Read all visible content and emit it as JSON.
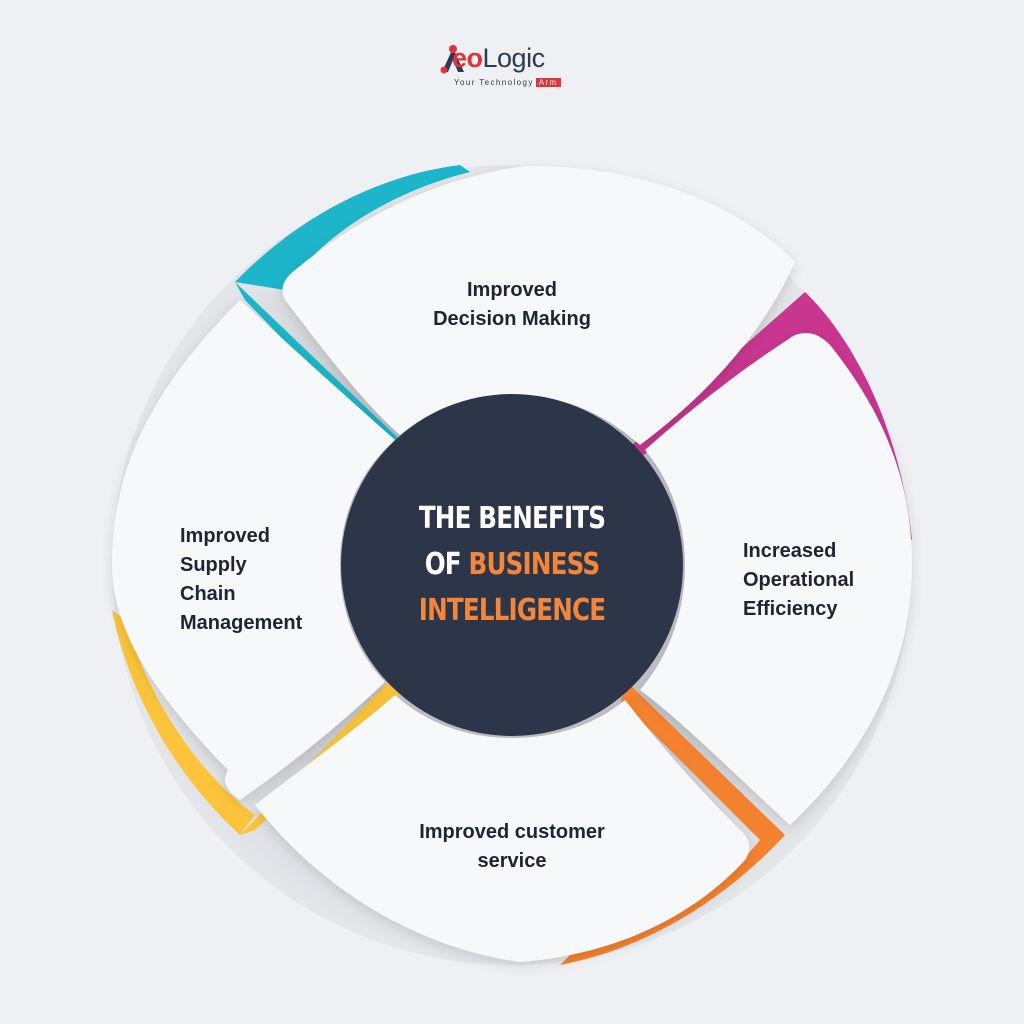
{
  "brand": {
    "name_prefix": "A",
    "name_eo": "eo",
    "name_rest": "Logic",
    "tagline": "Your Technology",
    "tagline_accent": "Arm"
  },
  "center": {
    "line1": "THE BENEFITS",
    "line2_prefix": "OF",
    "line2_accent": "BUSINESS",
    "line3_accent": "INTELLIGENCE"
  },
  "segments": [
    {
      "label_line1": "Improved",
      "label_line2": "Decision Making",
      "accent": "#1cb5c9"
    },
    {
      "label_line1": "Increased",
      "label_line2": "Operational",
      "label_line3": "Efficiency",
      "accent": "#c9368f"
    },
    {
      "label_line1": "Improved customer",
      "label_line2": "service",
      "accent": "#f5822f"
    },
    {
      "label_line1": "Improved",
      "label_line2": "Supply",
      "label_line3": "Chain",
      "label_line4": "Management",
      "accent": "#fbc43b"
    }
  ],
  "colors": {
    "background": "#eef0f3",
    "segment_fill": "#f7f8fa",
    "center_fill": "#2d3548",
    "title_white": "#ffffff",
    "title_accent": "#f3863a",
    "label_text": "#1e2433"
  }
}
